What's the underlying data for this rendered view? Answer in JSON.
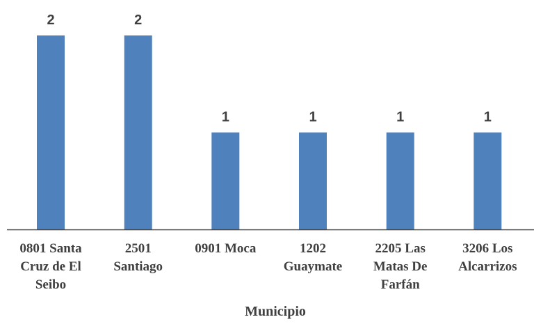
{
  "chart_data": {
    "type": "bar",
    "categories": [
      [
        "0801 Santa",
        "Cruz de El",
        "Seibo"
      ],
      [
        "2501",
        "Santiago"
      ],
      [
        "0901 Moca"
      ],
      [
        "1202",
        "Guaymate"
      ],
      [
        "2205 Las",
        "Matas De",
        "Farfán"
      ],
      [
        "3206 Los",
        "Alcarrizos"
      ]
    ],
    "values": [
      2,
      2,
      1,
      1,
      1,
      1
    ],
    "data_labels": [
      "2",
      "2",
      "1",
      "1",
      "1",
      "1"
    ],
    "title": "",
    "xlabel": "Municipio",
    "ylabel": "",
    "ylim": [
      0,
      2
    ],
    "grid": false,
    "legend": "none",
    "colors": {
      "bar": "#4F81BD",
      "axis": "#404040",
      "text": "#404040"
    }
  }
}
